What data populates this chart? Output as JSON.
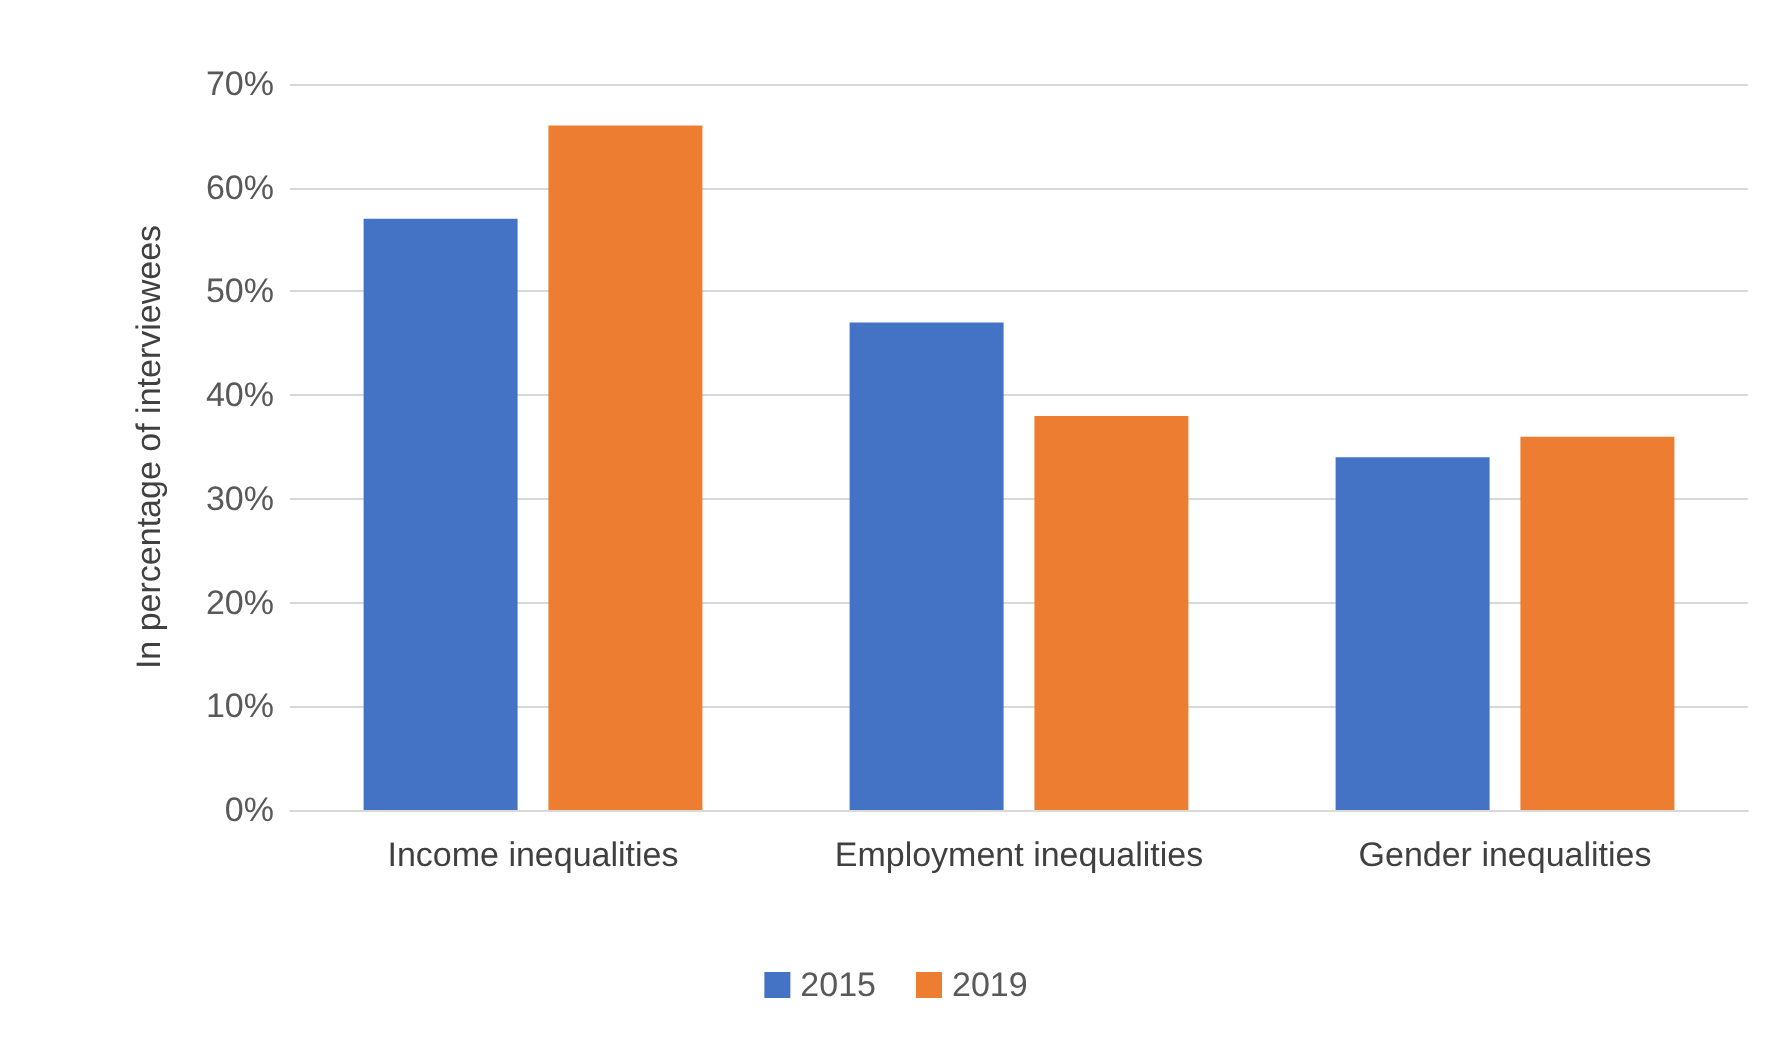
{
  "chart_data": {
    "type": "bar",
    "ylabel": "In percentage of interviewees",
    "categories": [
      "Income inequalities",
      "Employment inequalities",
      "Gender inequalities"
    ],
    "series": [
      {
        "name": "2015",
        "color": "#4472c4",
        "values": [
          57,
          47,
          34
        ]
      },
      {
        "name": "2019",
        "color": "#ed7d31",
        "values": [
          66,
          38,
          36
        ]
      }
    ],
    "ylim": [
      0,
      70
    ],
    "yticks": [
      {
        "value": 0,
        "label": "0%"
      },
      {
        "value": 10,
        "label": "10%"
      },
      {
        "value": 20,
        "label": "20%"
      },
      {
        "value": 30,
        "label": "30%"
      },
      {
        "value": 40,
        "label": "40%"
      },
      {
        "value": 50,
        "label": "50%"
      },
      {
        "value": 60,
        "label": "60%"
      },
      {
        "value": 70,
        "label": "70%"
      }
    ],
    "grid": "y",
    "legend": "bottom"
  }
}
